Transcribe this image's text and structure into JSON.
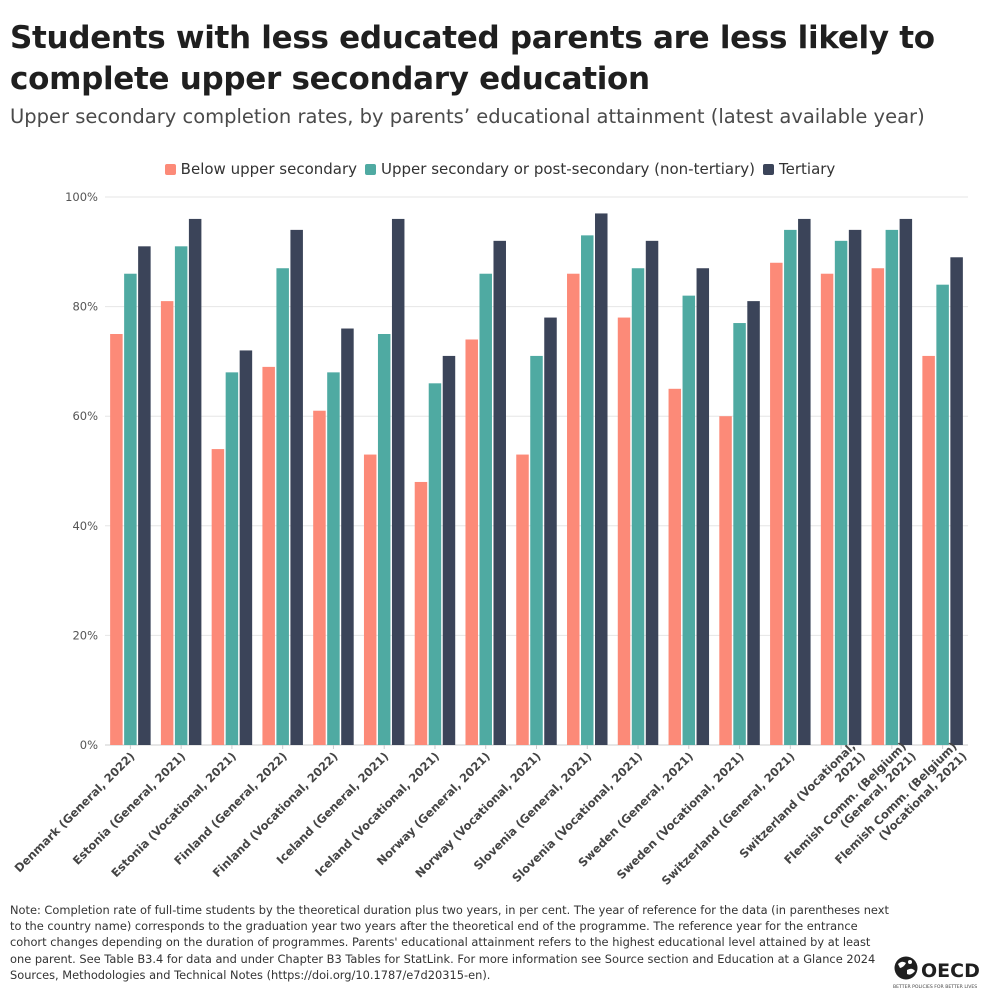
{
  "title": "Students with less educated parents are less likely to complete upper secondary education",
  "subtitle": "Upper secondary completion rates, by parents’ educational attainment (latest available year)",
  "note": "Note: Completion rate of full-time students by the theoretical duration plus two years, in per cent. The year of reference for the data (in parentheses next to the country name) corresponds to the graduation year two years after the theoretical end of the programme. The reference year for the entrance cohort changes depending on the duration of programmes. Parents' educational attainment refers to the highest educational level attained by at least one parent. See Table B3.4 for data and under Chapter B3 Tables for StatLink. For more information see Source section and Education at a Glance 2024 Sources, Methodologies and Technical Notes (https://doi.org/10.1787/e7d20315-en).",
  "logo": {
    "name": "OECD",
    "tagline": "BETTER POLICIES FOR BETTER LIVES"
  },
  "colors": {
    "below_upper_secondary": "#fc8a78",
    "upper_secondary": "#4faaa2",
    "tertiary": "#3b4459",
    "grid": "#e6e6e6",
    "axis": "#cccccc",
    "tick_text": "#555555"
  },
  "chart_data": {
    "type": "bar",
    "ylim": [
      0,
      100
    ],
    "y_ticks": [
      "0%",
      "20%",
      "40%",
      "60%",
      "80%",
      "100%"
    ],
    "grid": true,
    "legend_position": "top-center",
    "categories": [
      "Denmark (General, 2022)",
      "Estonia (General, 2021)",
      "Estonia (Vocational, 2021)",
      "Finland (General, 2022)",
      "Finland (Vocational, 2022)",
      "Iceland (General, 2021)",
      "Iceland (Vocational, 2021)",
      "Norway (General, 2021)",
      "Norway (Vocational, 2021)",
      "Slovenia (General, 2021)",
      "Slovenia (Vocational, 2021)",
      "Sweden (General, 2021)",
      "Sweden (Vocational, 2021)",
      "Switzerland (General, 2021)",
      "Switzerland (Vocational, 2021)",
      "Flemish Comm. (Belgium) (General, 2021)",
      "Flemish Comm. (Belgium) (Vocational, 2021)"
    ],
    "category_label_lines": [
      [
        "Denmark (General, 2022)"
      ],
      [
        "Estonia (General, 2021)"
      ],
      [
        "Estonia (Vocational, 2021)"
      ],
      [
        "Finland (General, 2022)"
      ],
      [
        "Finland (Vocational, 2022)"
      ],
      [
        "Iceland (General, 2021)"
      ],
      [
        "Iceland (Vocational, 2021)"
      ],
      [
        "Norway (General, 2021)"
      ],
      [
        "Norway (Vocational, 2021)"
      ],
      [
        "Slovenia (General, 2021)"
      ],
      [
        "Slovenia (Vocational, 2021)"
      ],
      [
        "Sweden (General, 2021)"
      ],
      [
        "Sweden (Vocational, 2021)"
      ],
      [
        "Switzerland (General, 2021)"
      ],
      [
        "Switzerland (Vocational,",
        "2021)"
      ],
      [
        "Flemish Comm. (Belgium)",
        "(General, 2021)"
      ],
      [
        "Flemish Comm. (Belgium)",
        "(Vocational, 2021)"
      ]
    ],
    "series": [
      {
        "name": "Below upper secondary",
        "color": "#fc8a78",
        "values": [
          75,
          81,
          54,
          69,
          61,
          53,
          48,
          74,
          53,
          86,
          78,
          65,
          60,
          88,
          86,
          87,
          71
        ]
      },
      {
        "name": "Upper secondary or post-secondary (non-tertiary)",
        "color": "#4faaa2",
        "values": [
          86,
          91,
          68,
          87,
          68,
          75,
          66,
          86,
          71,
          93,
          87,
          82,
          77,
          94,
          92,
          94,
          84
        ]
      },
      {
        "name": "Tertiary",
        "color": "#3b4459",
        "values": [
          91,
          96,
          72,
          94,
          76,
          96,
          71,
          92,
          78,
          97,
          92,
          87,
          81,
          96,
          94,
          96,
          89
        ]
      }
    ]
  }
}
